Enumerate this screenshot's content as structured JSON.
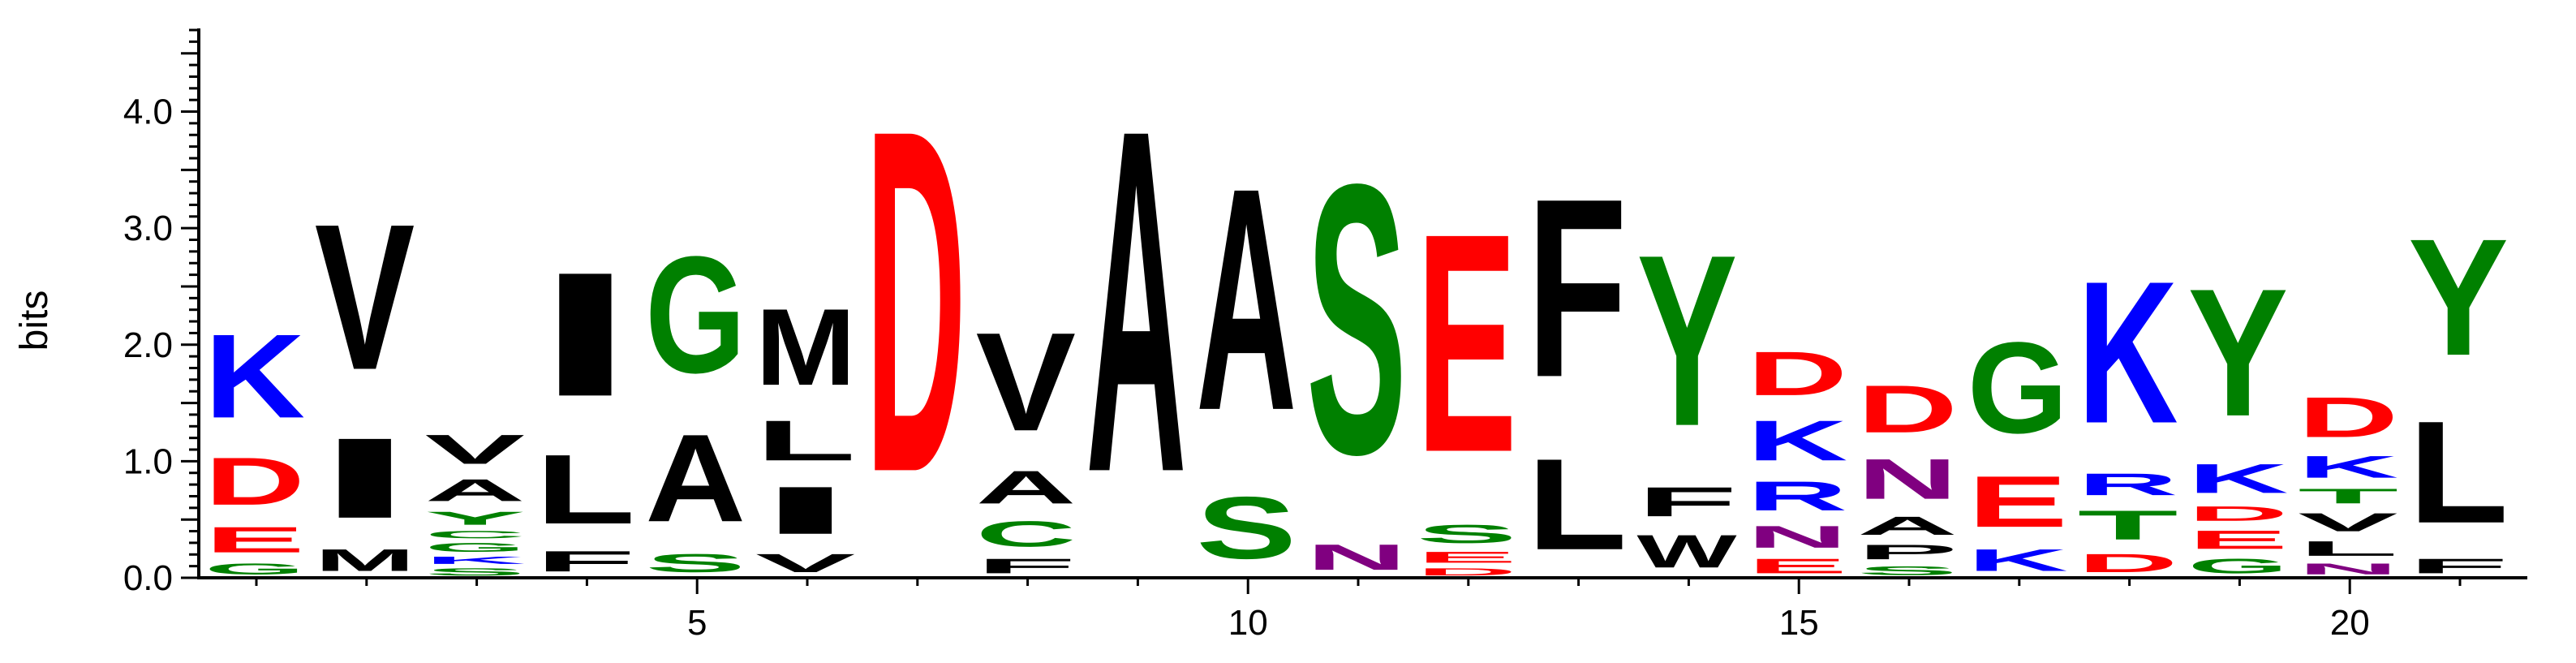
{
  "chart_data": {
    "type": "sequence-logo",
    "ylabel": "bits",
    "ylim": [
      0,
      4.7
    ],
    "y_ticks": [
      {
        "value": 0.0,
        "label": "0.0"
      },
      {
        "value": 1.0,
        "label": "1.0"
      },
      {
        "value": 2.0,
        "label": "2.0"
      },
      {
        "value": 3.0,
        "label": "3.0"
      },
      {
        "value": 4.0,
        "label": "4.0"
      }
    ],
    "x_ticks": [
      {
        "value": 5,
        "label": "5"
      },
      {
        "value": 10,
        "label": "10"
      },
      {
        "value": 15,
        "label": "15"
      },
      {
        "value": 20,
        "label": "20"
      }
    ],
    "colors": {
      "K": "#0000ff",
      "R": "#0000ff",
      "H": "#0000ff",
      "D": "#ff0000",
      "E": "#ff0000",
      "G": "#008000",
      "S": "#008000",
      "T": "#008000",
      "Y": "#008000",
      "C": "#008000",
      "N": "#800080",
      "Q": "#800080",
      "A": "#000000",
      "V": "#000000",
      "L": "#000000",
      "I": "#000000",
      "M": "#000000",
      "F": "#000000",
      "W": "#000000",
      "P": "#000000"
    },
    "positions": [
      {
        "pos": 1,
        "letters": [
          [
            "G",
            0.15
          ],
          [
            "E",
            0.35
          ],
          [
            "D",
            0.65
          ],
          [
            "K",
            1.15
          ]
        ]
      },
      {
        "pos": 2,
        "letters": [
          [
            "M",
            0.3
          ],
          [
            "I",
            1.1
          ],
          [
            "V",
            2.0
          ]
        ]
      },
      {
        "pos": 3,
        "letters": [
          [
            "S",
            0.1
          ],
          [
            "K",
            0.1
          ],
          [
            "G",
            0.12
          ],
          [
            "C",
            0.1
          ],
          [
            "Y",
            0.18
          ],
          [
            "A",
            0.3
          ],
          [
            "V",
            0.4
          ]
        ]
      },
      {
        "pos": 4,
        "letters": [
          [
            "F",
            0.28
          ],
          [
            "L",
            0.95
          ],
          [
            "I",
            1.7
          ]
        ]
      },
      {
        "pos": 5,
        "letters": [
          [
            "S",
            0.25
          ],
          [
            "A",
            1.2
          ],
          [
            "G",
            1.6
          ]
        ]
      },
      {
        "pos": 6,
        "letters": [
          [
            "V",
            0.25
          ],
          [
            "I",
            0.65
          ],
          [
            "L",
            0.55
          ],
          [
            "M",
            1.05
          ]
        ]
      },
      {
        "pos": 7,
        "letters": [
          [
            "D",
            4.7
          ]
        ]
      },
      {
        "pos": 8,
        "letters": [
          [
            "F",
            0.2
          ],
          [
            "C",
            0.35
          ],
          [
            "A",
            0.45
          ],
          [
            "V",
            1.35
          ]
        ]
      },
      {
        "pos": 9,
        "letters": [
          [
            "A",
            4.7
          ]
        ]
      },
      {
        "pos": 10,
        "letters": [
          [
            "S",
            0.85
          ],
          [
            "A",
            3.05
          ]
        ]
      },
      {
        "pos": 11,
        "letters": [
          [
            "N",
            0.35
          ],
          [
            "S",
            3.7
          ]
        ]
      },
      {
        "pos": 12,
        "letters": [
          [
            "D",
            0.1
          ],
          [
            "E",
            0.15
          ],
          [
            "S",
            0.25
          ],
          [
            "E",
            3.0
          ]
        ]
      },
      {
        "pos": 13,
        "letters": [
          [
            "L",
            1.25
          ],
          [
            "F",
            2.45
          ]
        ]
      },
      {
        "pos": 14,
        "letters": [
          [
            "W",
            0.45
          ],
          [
            "F",
            0.4
          ],
          [
            "Y",
            2.35
          ]
        ]
      },
      {
        "pos": 15,
        "letters": [
          [
            "E",
            0.2
          ],
          [
            "N",
            0.3
          ],
          [
            "R",
            0.4
          ],
          [
            "K",
            0.55
          ],
          [
            "D",
            0.6
          ]
        ]
      },
      {
        "pos": 16,
        "letters": [
          [
            "S",
            0.12
          ],
          [
            "P",
            0.2
          ],
          [
            "A",
            0.25
          ],
          [
            "N",
            0.55
          ],
          [
            "D",
            0.65
          ]
        ]
      },
      {
        "pos": 17,
        "letters": [
          [
            "K",
            0.3
          ],
          [
            "E",
            0.7
          ],
          [
            "G",
            1.25
          ]
        ]
      },
      {
        "pos": 18,
        "letters": [
          [
            "D",
            0.25
          ],
          [
            "T",
            0.4
          ],
          [
            "R",
            0.3
          ],
          [
            "K",
            1.95
          ]
        ]
      },
      {
        "pos": 19,
        "letters": [
          [
            "G",
            0.2
          ],
          [
            "E",
            0.25
          ],
          [
            "D",
            0.2
          ],
          [
            "K",
            0.4
          ],
          [
            "Y",
            1.75
          ]
        ]
      },
      {
        "pos": 20,
        "letters": [
          [
            "N",
            0.15
          ],
          [
            "L",
            0.2
          ],
          [
            "V",
            0.25
          ],
          [
            "T",
            0.2
          ],
          [
            "K",
            0.3
          ],
          [
            "D",
            0.55
          ]
        ]
      },
      {
        "pos": 21,
        "letters": [
          [
            "F",
            0.2
          ],
          [
            "L",
            1.4
          ],
          [
            "Y",
            1.6
          ]
        ]
      }
    ]
  }
}
